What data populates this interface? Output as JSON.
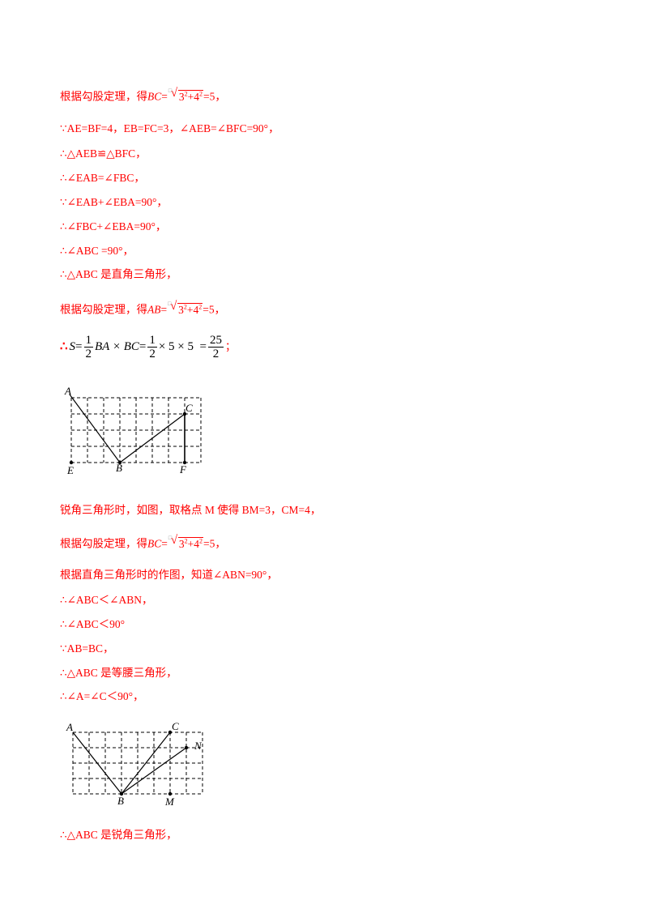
{
  "lines": [
    {
      "pre": "根据勾股定理，得",
      "var": "BC",
      "eq": "=",
      "rad_index": "□",
      "rad_body": [
        "3",
        "2",
        "+4",
        "2"
      ],
      "post": "=5，"
    },
    {
      "text": "∵AE=BF=4，EB=FC=3，∠AEB=∠BFC=90°，"
    },
    {
      "text": "∴△AEB≌△BFC，"
    },
    {
      "text": "∴∠EAB=∠FBC，"
    },
    {
      "text": "∵∠EAB+∠EBA=90°，"
    },
    {
      "text": "∴∠FBC+∠EBA=90°，"
    },
    {
      "text": "∴∠ABC  =90°，"
    },
    {
      "text": "∴△ABC 是直角三角形，"
    },
    {
      "pre": "根据勾股定理，得",
      "var": "AB",
      "eq": "=",
      "rad_index": "□",
      "rad_body": [
        "3",
        "2",
        "+4",
        "2"
      ],
      "post": "=5，"
    },
    {
      "text": "锐角三角形时，如图，取格点 M 使得 BM=3，CM=4，"
    },
    {
      "pre": "根据勾股定理，得",
      "var": "BC",
      "eq": "=",
      "rad_index": "□",
      "rad_body": [
        "3",
        "2",
        "+4",
        "2"
      ],
      "post": "=5，"
    },
    {
      "text": "根据直角三角形时的作图，知道∠ABN=90°，"
    },
    {
      "text": "∴∠ABC＜∠ABN，"
    },
    {
      "text": "∴∠ABC＜90°"
    },
    {
      "text": "∵AB=BC，"
    },
    {
      "text": "∴△ABC 是等腰三角形，"
    },
    {
      "text": "∴∠A=∠C＜90°，"
    },
    {
      "text": "∴△ABC 是锐角三角形，"
    }
  ],
  "formula": {
    "therefore": "∴",
    "s": "S",
    "eq1": "=",
    "f1_num": "1",
    "f1_den": "2",
    "mid": "BA × BC",
    "eq2": "=",
    "f2_num": "1",
    "f2_den": "2",
    "mult": "× 5 × 5",
    "eq3": "=",
    "f3_num": "25",
    "f3_den": "2",
    "semi": "；"
  },
  "figure1": {
    "labels": {
      "A": "A",
      "C": "C",
      "E": "E",
      "B": "B",
      "F": "F"
    }
  },
  "figure2": {
    "labels": {
      "A": "A",
      "C": "C",
      "N": "N",
      "B": "B",
      "M": "M"
    }
  },
  "colors": {
    "text": "#ff0000",
    "grid": "#000000"
  }
}
